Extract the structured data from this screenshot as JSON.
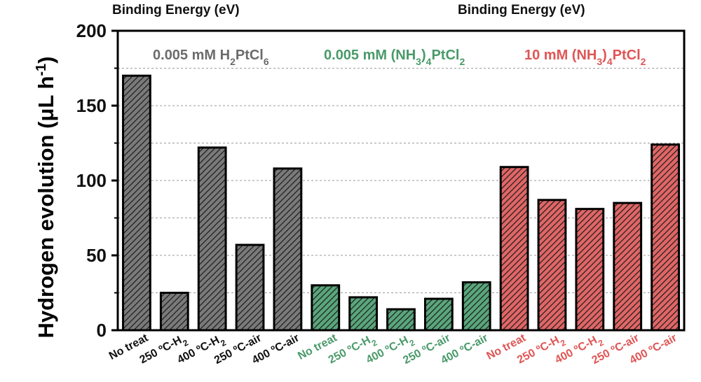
{
  "header": {
    "left_title": "Binding Energy (eV)",
    "right_title": "Binding Energy (eV)"
  },
  "colors": {
    "gray": "#7a7a7a",
    "green": "#5aa67c",
    "red": "#e06666",
    "gray_text": "#6b6b6b",
    "green_text": "#4a9a6a",
    "red_text": "#e05555"
  },
  "chart_data": {
    "type": "bar",
    "ylabel": "Hydrogen evolution (μL h-1)",
    "ylim": [
      0,
      200
    ],
    "yticks": [
      "0",
      "50",
      "100",
      "150",
      "200"
    ],
    "grid": "horizontal dashed",
    "group_labels": [
      {
        "text": "0.005 mM H2PtCl6",
        "color": "gray_text"
      },
      {
        "text": "0.005 mM (NH3)4PtCl2",
        "color": "green_text"
      },
      {
        "text": "10 mM (NH3)4PtCl2",
        "color": "red_text"
      }
    ],
    "categories": [
      "No treat",
      "250 ºC-H2",
      "400 ºC-H2",
      "250 ºC-air",
      "400 ºC-air",
      "No treat",
      "250 ºC-H2",
      "400 ºC-H2",
      "250 ºC-air",
      "400 ºC-air",
      "No treat",
      "250 ºC-H2",
      "400 ºC-H2",
      "250 ºC-air",
      "400 ºC-air"
    ],
    "values": [
      170,
      25,
      122,
      57,
      108,
      30,
      22,
      14,
      21,
      32,
      109,
      87,
      81,
      85,
      124
    ],
    "bar_colors": [
      "gray",
      "gray",
      "gray",
      "gray",
      "gray",
      "green",
      "green",
      "green",
      "green",
      "green",
      "red",
      "red",
      "red",
      "red",
      "red"
    ]
  }
}
